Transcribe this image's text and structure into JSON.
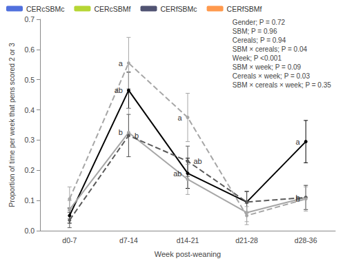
{
  "chart_data": {
    "type": "line",
    "x_label": "Week post-weaning",
    "y_label": "Proportion of time per week that pens scored 2 or 3",
    "categories": [
      "d0-7",
      "d7-14",
      "d14-21",
      "d21-28",
      "d28-36"
    ],
    "ylim": [
      0,
      0.7
    ],
    "yticks": [
      {
        "value": 0,
        "label": "0.0"
      },
      0.1,
      0.2,
      0.3,
      0.4,
      0.5,
      0.6,
      0.7
    ],
    "grid": false,
    "legend": "top",
    "annotations": [
      "Gender; P = 0.72",
      "SBM; P = 0.96",
      "Cereals; P = 0.94",
      "SBM × cereals; P = 0.04",
      "Week; P <0.001",
      "SBM × week; P = 0.09",
      "Cereals × week; P = 0.03",
      "SBM × cereals × week; P = 0.35"
    ],
    "series": [
      {
        "name": "CERcSBMc",
        "color": "#000000",
        "line_style": "solid",
        "marker": "circle",
        "values": [
          0.05,
          0.465,
          0.19,
          0.095,
          0.295
        ],
        "errors": [
          0.025,
          0.06,
          0.05,
          0.035,
          0.07
        ],
        "point_labels": [
          null,
          "ab",
          "ab",
          null,
          "a"
        ]
      },
      {
        "name": "CERcSBMf",
        "color": "#a6a6a6",
        "line_style": "solid",
        "marker": "circle",
        "values": [
          0.07,
          0.325,
          0.17,
          0.06,
          0.11
        ],
        "errors": [
          0.03,
          0.08,
          0.05,
          0.03,
          0.04
        ],
        "point_labels": [
          null,
          "b",
          null,
          null,
          "b"
        ]
      },
      {
        "name": "CERfSBMc",
        "color": "#595959",
        "line_style": "dashed",
        "marker": "circle",
        "values": [
          0.035,
          0.315,
          0.23,
          0.095,
          0.11
        ],
        "errors": [
          0.025,
          0.07,
          0.05,
          0.035,
          0.04
        ],
        "point_labels": [
          null,
          "b",
          "ab",
          null,
          null
        ]
      },
      {
        "name": "CERfSBMf",
        "color": "#a6a6a6",
        "line_style": "dashed",
        "marker": "circle",
        "values": [
          0.105,
          0.555,
          0.375,
          0.05,
          0.105
        ],
        "errors": [
          0.04,
          0.085,
          0.08,
          0.03,
          0.04
        ],
        "point_labels": [
          null,
          "a",
          "a",
          null,
          "b"
        ]
      }
    ]
  }
}
